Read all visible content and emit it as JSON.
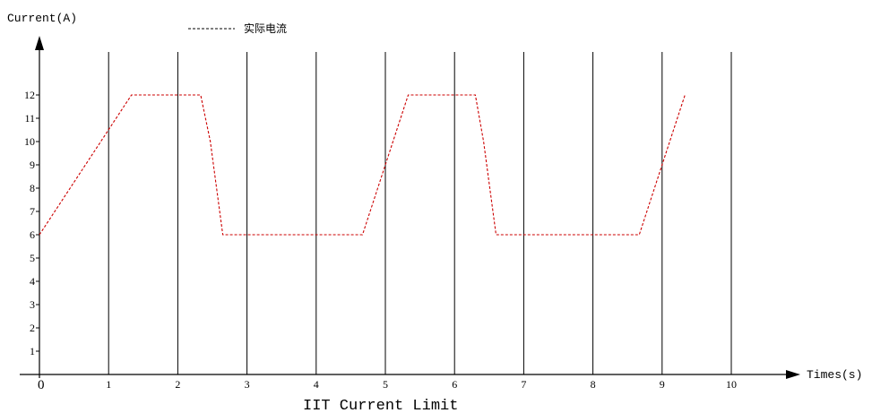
{
  "chart_data": {
    "type": "line",
    "title": "IIT Current Limit",
    "ylabel": "Current(A)",
    "xlabel": "Times(s)",
    "origin_label": "0",
    "x_ticks": [
      "1",
      "2",
      "3",
      "4",
      "5",
      "6",
      "7",
      "8",
      "9",
      "10"
    ],
    "y_ticks": [
      "1",
      "2",
      "3",
      "4",
      "5",
      "6",
      "7",
      "8",
      "9",
      "10",
      "11",
      "12"
    ],
    "xlim": [
      0,
      11
    ],
    "ylim": [
      0,
      12
    ],
    "grid": "vertical lines at each x tick",
    "legend_position": "top-left",
    "series": [
      {
        "name": "实际电流",
        "color": "#cc0000",
        "line_style": "dashed",
        "x": [
          0,
          1.33,
          2.33,
          2.47,
          2.65,
          4.67,
          5.33,
          6.3,
          6.42,
          6.6,
          8.67,
          9.33
        ],
        "y": [
          6,
          12,
          12,
          10,
          6,
          6,
          12,
          12,
          10,
          6,
          6,
          12
        ]
      }
    ]
  }
}
